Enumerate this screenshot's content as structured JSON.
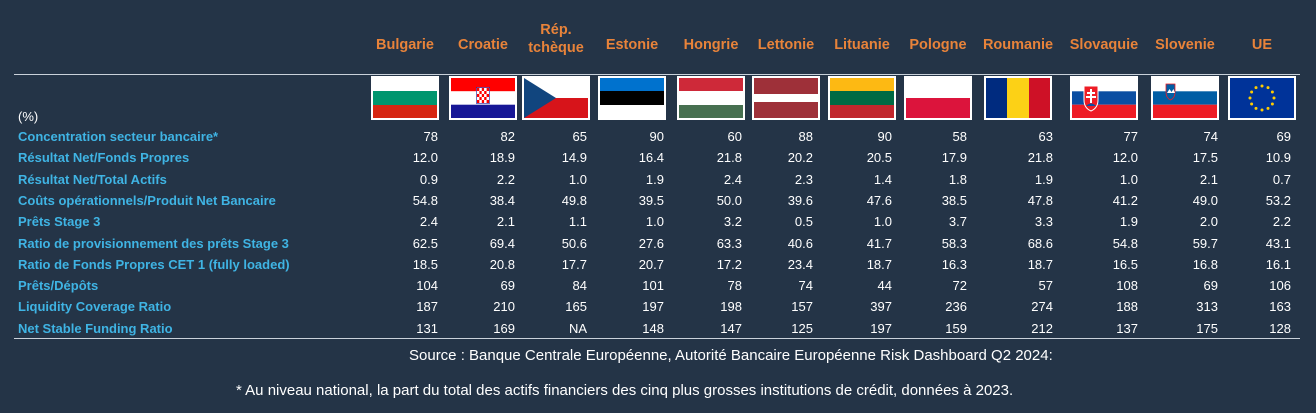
{
  "unit_label": "(%)",
  "countries": [
    {
      "name": "Bulgarie",
      "flag": "bulgaria-flag",
      "colors": [
        "#ffffff",
        "#00966e",
        "#d62612"
      ]
    },
    {
      "name": "Croatie",
      "flag": "croatia-flag",
      "colors": [
        "#ff0000",
        "#ffffff",
        "#171796"
      ]
    },
    {
      "name": "Rép. tchèque",
      "flag": "czech-flag",
      "colors": [
        "#ffffff",
        "#d7141a",
        "#11457e"
      ]
    },
    {
      "name": "Estonie",
      "flag": "estonia-flag",
      "colors": [
        "#0072ce",
        "#000000",
        "#ffffff"
      ]
    },
    {
      "name": "Hongrie",
      "flag": "hungary-flag",
      "colors": [
        "#ce2939",
        "#ffffff",
        "#477050"
      ]
    },
    {
      "name": "Lettonie",
      "flag": "latvia-flag",
      "colors": [
        "#9e3039",
        "#ffffff",
        "#9e3039"
      ]
    },
    {
      "name": "Lituanie",
      "flag": "lithuania-flag",
      "colors": [
        "#fdb913",
        "#006a44",
        "#c1272d"
      ]
    },
    {
      "name": "Pologne",
      "flag": "poland-flag",
      "colors": [
        "#ffffff",
        "#dc143c"
      ]
    },
    {
      "name": "Roumanie",
      "flag": "romania-flag",
      "colors": [
        "#002b7f",
        "#fcd116",
        "#ce1126"
      ]
    },
    {
      "name": "Slovaquie",
      "flag": "slovakia-flag",
      "colors": [
        "#ffffff",
        "#0b4ea2",
        "#ee1c25"
      ]
    },
    {
      "name": "Slovenie",
      "flag": "slovenia-flag",
      "colors": [
        "#ffffff",
        "#005da4",
        "#ed1c24"
      ]
    },
    {
      "name": "UE",
      "flag": "eu-flag",
      "colors": [
        "#003399",
        "#ffcc00"
      ]
    }
  ],
  "chart_data": {
    "type": "table",
    "columns": [
      "Bulgarie",
      "Croatie",
      "Rép. tchèque",
      "Estonie",
      "Hongrie",
      "Lettonie",
      "Lituanie",
      "Pologne",
      "Roumanie",
      "Slovaquie",
      "Slovenie",
      "UE"
    ],
    "rows": [
      {
        "label": "Concentration secteur bancaire*",
        "values": [
          "78",
          "82",
          "65",
          "90",
          "60",
          "88",
          "90",
          "58",
          "63",
          "77",
          "74",
          "69"
        ]
      },
      {
        "label": "Résultat Net/Fonds Propres",
        "values": [
          "12.0",
          "18.9",
          "14.9",
          "16.4",
          "21.8",
          "20.2",
          "20.5",
          "17.9",
          "21.8",
          "12.0",
          "17.5",
          "10.9"
        ]
      },
      {
        "label": "Résultat Net/Total Actifs",
        "values": [
          "0.9",
          "2.2",
          "1.0",
          "1.9",
          "2.4",
          "2.3",
          "1.4",
          "1.8",
          "1.9",
          "1.0",
          "2.1",
          "0.7"
        ]
      },
      {
        "label": "Coûts opérationnels/Produit Net Bancaire",
        "values": [
          "54.8",
          "38.4",
          "49.8",
          "39.5",
          "50.0",
          "39.6",
          "47.6",
          "38.5",
          "47.8",
          "41.2",
          "49.0",
          "53.2"
        ]
      },
      {
        "label": "Prêts Stage 3",
        "values": [
          "2.4",
          "2.1",
          "1.1",
          "1.0",
          "3.2",
          "0.5",
          "1.0",
          "3.7",
          "3.3",
          "1.9",
          "2.0",
          "2.2"
        ]
      },
      {
        "label": "Ratio de provisionnement des prêts Stage 3",
        "values": [
          "62.5",
          "69.4",
          "50.6",
          "27.6",
          "63.3",
          "40.6",
          "41.7",
          "58.3",
          "68.6",
          "54.8",
          "59.7",
          "43.1"
        ]
      },
      {
        "label": "Ratio de Fonds Propres CET 1 (fully loaded)",
        "values": [
          "18.5",
          "20.8",
          "17.7",
          "20.7",
          "17.2",
          "23.4",
          "18.7",
          "16.3",
          "18.7",
          "16.5",
          "16.8",
          "16.1"
        ]
      },
      {
        "label": "Prêts/Dépôts",
        "values": [
          "104",
          "69",
          "84",
          "101",
          "78",
          "74",
          "44",
          "72",
          "57",
          "108",
          "69",
          "106"
        ]
      },
      {
        "label": "Liquidity Coverage Ratio",
        "values": [
          "187",
          "210",
          "165",
          "197",
          "198",
          "157",
          "397",
          "236",
          "274",
          "188",
          "313",
          "163"
        ]
      },
      {
        "label": "Net Stable Funding Ratio",
        "values": [
          "131",
          "169",
          "NA",
          "148",
          "147",
          "125",
          "197",
          "159",
          "212",
          "137",
          "175",
          "128"
        ]
      }
    ]
  },
  "source": "Source : Banque Centrale Européenne, Autorité Bancaire Européenne Risk Dashboard Q2 2024:",
  "footnote": "* Au niveau national, la part du total des actifs financiers des cinq plus grosses institutions de crédit, données à 2023.",
  "colors": {
    "background": "#243447",
    "header": "#e8833a",
    "row_label": "#3fb4e4",
    "value": "#ffffff",
    "rule": "#c9d1da"
  }
}
